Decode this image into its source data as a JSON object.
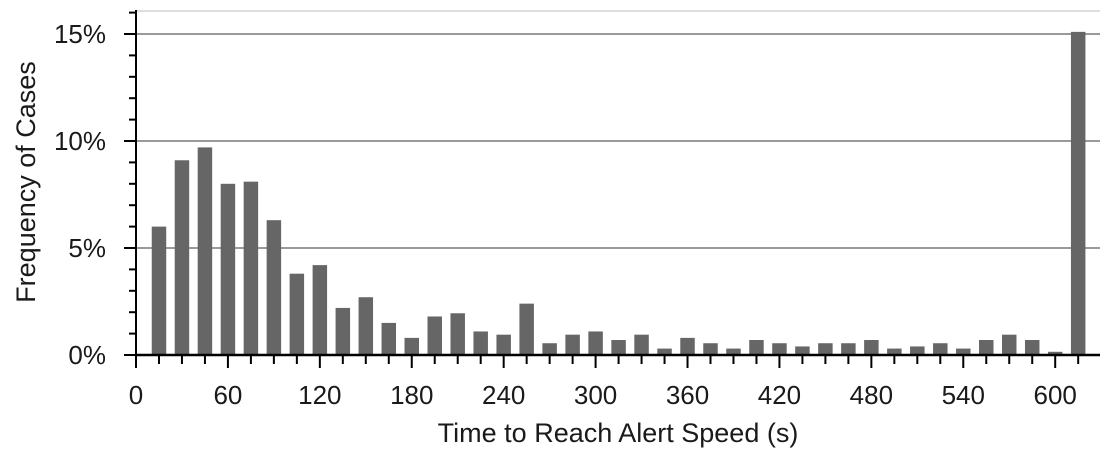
{
  "chart_data": {
    "type": "bar",
    "title": "",
    "xlabel": "Time to Reach Alert Speed (s)",
    "ylabel": "Frequency of Cases",
    "x_unit": "s",
    "bin_width_s": 15,
    "x": [
      15,
      30,
      45,
      60,
      75,
      90,
      105,
      120,
      135,
      150,
      165,
      180,
      195,
      210,
      225,
      240,
      255,
      270,
      285,
      300,
      315,
      330,
      345,
      360,
      375,
      390,
      405,
      420,
      435,
      450,
      465,
      480,
      495,
      510,
      525,
      540,
      555,
      570,
      585,
      600,
      615
    ],
    "values": [
      6.0,
      9.1,
      9.7,
      8.0,
      8.1,
      6.3,
      3.8,
      4.2,
      2.2,
      2.7,
      1.5,
      0.8,
      1.8,
      1.95,
      1.1,
      0.95,
      2.4,
      0.55,
      0.95,
      1.1,
      0.7,
      0.95,
      0.3,
      0.8,
      0.55,
      0.3,
      0.7,
      0.55,
      0.4,
      0.55,
      0.55,
      0.7,
      0.3,
      0.4,
      0.55,
      0.3,
      0.7,
      0.95,
      0.7,
      0.15,
      15.1
    ],
    "x_ticks": [
      "0",
      "60",
      "120",
      "180",
      "240",
      "300",
      "360",
      "420",
      "480",
      "540",
      "600"
    ],
    "x_tick_values": [
      0,
      60,
      120,
      180,
      240,
      300,
      360,
      420,
      480,
      540,
      600
    ],
    "y_ticks": [
      "0%",
      "5%",
      "10%",
      "15%"
    ],
    "y_tick_values": [
      0,
      5,
      10,
      15
    ],
    "xlim": [
      0,
      622
    ],
    "ylim": [
      0,
      16
    ],
    "y_minor_step": 1,
    "x_minor_step": 15,
    "grid": "horizontal major lines",
    "legend": "none",
    "colors": {
      "bar": "#666666",
      "grid": "#9a9a9a",
      "axis": "#000000",
      "text": "#1a1a1a"
    }
  }
}
